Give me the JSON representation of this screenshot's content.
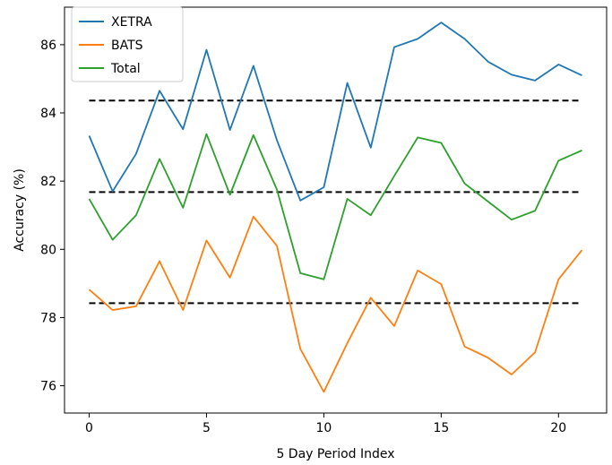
{
  "chart_data": {
    "type": "line",
    "title": "",
    "xlabel": "5 Day Period Index",
    "ylabel": "Accuracy (%)",
    "xlim": [
      -1.05,
      22.05
    ],
    "ylim": [
      75.2,
      87.1
    ],
    "xticks": [
      0,
      5,
      10,
      15,
      20
    ],
    "yticks": [
      76,
      78,
      80,
      82,
      84,
      86
    ],
    "grid": false,
    "legend": "top-left",
    "x": [
      0,
      1,
      2,
      3,
      4,
      5,
      6,
      7,
      8,
      9,
      10,
      11,
      12,
      13,
      14,
      15,
      16,
      17,
      18,
      19,
      20,
      21
    ],
    "series": [
      {
        "name": "XETRA",
        "color": "#1f77b4",
        "values": [
          83.33,
          81.7,
          82.8,
          84.65,
          83.52,
          85.85,
          83.5,
          85.38,
          83.2,
          81.43,
          81.82,
          84.88,
          82.98,
          85.93,
          86.17,
          86.65,
          86.17,
          85.5,
          85.12,
          84.95,
          85.42,
          85.1
        ]
      },
      {
        "name": "BATS",
        "color": "#ff7f0e",
        "values": [
          78.82,
          78.22,
          78.33,
          79.65,
          78.22,
          80.26,
          79.17,
          80.96,
          80.1,
          77.08,
          75.82,
          77.25,
          78.58,
          77.75,
          79.38,
          78.98,
          77.15,
          76.82,
          76.33,
          76.98,
          79.12,
          79.98
        ]
      },
      {
        "name": "Total",
        "color": "#2ca02c",
        "values": [
          81.48,
          80.28,
          81.0,
          82.65,
          81.22,
          83.38,
          81.6,
          83.35,
          81.75,
          79.3,
          79.12,
          81.48,
          81.0,
          82.15,
          83.28,
          83.12,
          81.93,
          81.4,
          80.87,
          81.13,
          82.6,
          82.9
        ]
      }
    ],
    "reference_lines": [
      {
        "y": 84.36,
        "x_range": [
          0,
          21
        ],
        "style": "dashed",
        "color": "#000000"
      },
      {
        "y": 81.68,
        "x_range": [
          0,
          21
        ],
        "style": "dashed",
        "color": "#000000"
      },
      {
        "y": 78.42,
        "x_range": [
          0,
          21
        ],
        "style": "dashed",
        "color": "#000000"
      }
    ]
  }
}
